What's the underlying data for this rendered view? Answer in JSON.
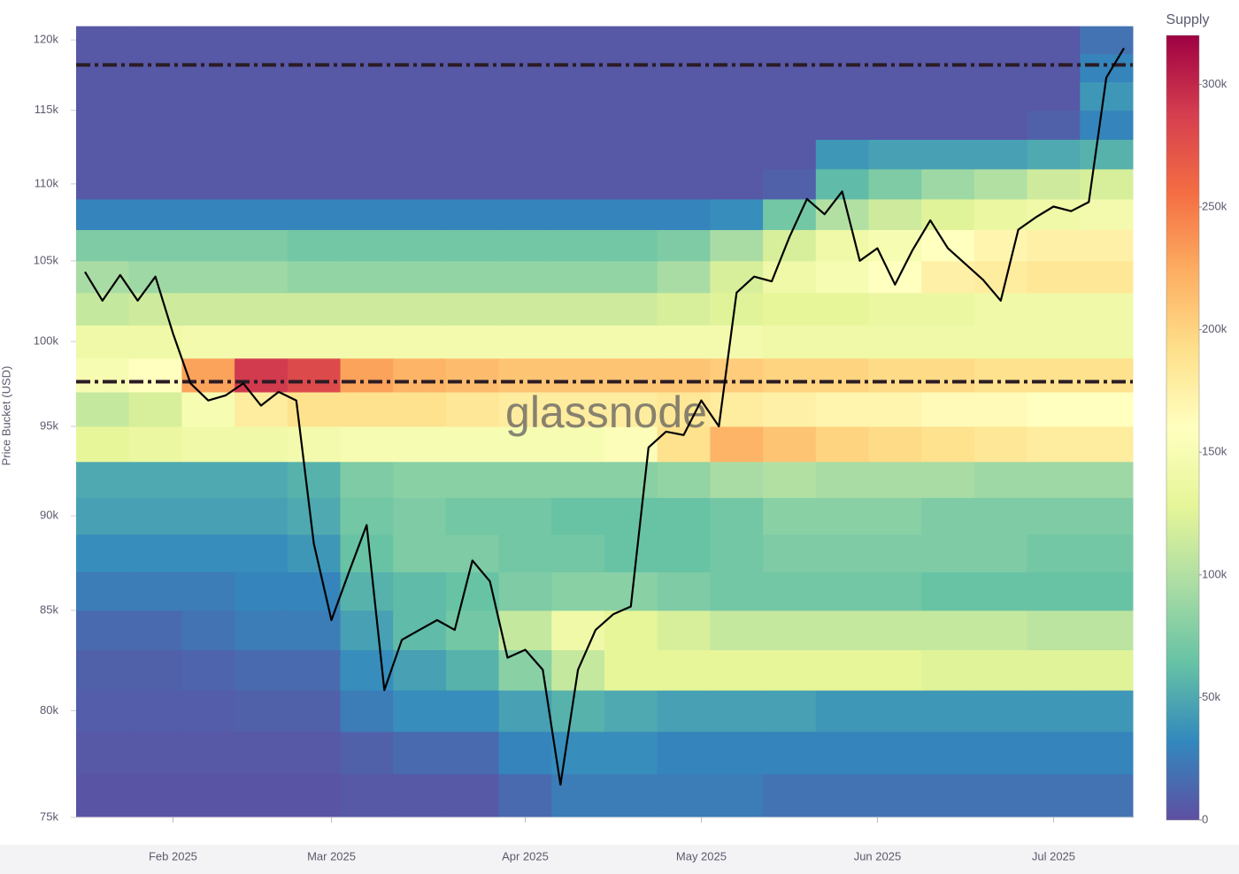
{
  "chart_data": {
    "type": "heatmap",
    "y_label": "Price Bucket (USD)",
    "colorbar_title": "Supply",
    "watermark": "glassnode",
    "x": [
      null,
      null,
      null,
      null,
      null,
      "Feb 2025",
      null,
      null,
      null,
      null,
      null,
      null,
      null,
      null,
      "Mar 2025",
      null,
      null,
      null,
      null,
      null,
      null,
      null,
      null,
      null,
      null,
      "Apr 2025",
      null,
      null,
      null,
      null,
      null,
      null,
      null,
      null,
      null,
      "May 2025",
      null,
      null,
      null,
      null,
      null,
      null,
      null,
      null,
      null,
      "Jun 2025",
      null,
      null,
      null,
      null,
      null,
      null,
      null,
      null,
      null,
      "Jul 2025",
      null,
      null,
      null,
      null
    ],
    "buckets": [
      75000,
      77000,
      79000,
      81000,
      83000,
      85000,
      87000,
      89000,
      91000,
      93000,
      95000,
      97000,
      99000,
      101000,
      103000,
      105000,
      107000,
      109000,
      111000,
      113000,
      115000,
      117000,
      119000,
      121000
    ],
    "z": [
      [
        3000,
        3000,
        3000,
        3000,
        3000,
        5000,
        5000,
        5000,
        15000,
        25000,
        25000,
        25000,
        25000,
        20000,
        20000,
        20000,
        20000,
        20000,
        20000,
        20000
      ],
      [
        5000,
        5000,
        5000,
        5000,
        5000,
        10000,
        15000,
        15000,
        30000,
        35000,
        35000,
        30000,
        30000,
        30000,
        30000,
        30000,
        30000,
        30000,
        30000,
        30000
      ],
      [
        8000,
        8000,
        8000,
        10000,
        10000,
        25000,
        35000,
        35000,
        45000,
        55000,
        50000,
        45000,
        45000,
        45000,
        40000,
        40000,
        40000,
        40000,
        40000,
        40000
      ],
      [
        10000,
        10000,
        12000,
        15000,
        15000,
        35000,
        45000,
        55000,
        80000,
        110000,
        130000,
        130000,
        130000,
        130000,
        130000,
        130000,
        125000,
        125000,
        125000,
        125000
      ],
      [
        15000,
        15000,
        20000,
        25000,
        25000,
        45000,
        60000,
        70000,
        110000,
        140000,
        130000,
        120000,
        110000,
        110000,
        110000,
        110000,
        110000,
        110000,
        105000,
        105000
      ],
      [
        25000,
        25000,
        25000,
        30000,
        30000,
        55000,
        60000,
        65000,
        75000,
        80000,
        80000,
        75000,
        70000,
        70000,
        70000,
        70000,
        65000,
        65000,
        65000,
        65000
      ],
      [
        35000,
        35000,
        35000,
        35000,
        40000,
        65000,
        75000,
        75000,
        70000,
        70000,
        65000,
        65000,
        70000,
        75000,
        75000,
        75000,
        75000,
        75000,
        70000,
        70000
      ],
      [
        45000,
        45000,
        45000,
        45000,
        50000,
        70000,
        75000,
        70000,
        70000,
        65000,
        65000,
        65000,
        70000,
        80000,
        80000,
        80000,
        75000,
        75000,
        75000,
        75000
      ],
      [
        50000,
        50000,
        50000,
        50000,
        55000,
        75000,
        80000,
        80000,
        80000,
        80000,
        80000,
        85000,
        95000,
        100000,
        95000,
        95000,
        95000,
        90000,
        90000,
        90000
      ],
      [
        130000,
        135000,
        140000,
        140000,
        145000,
        150000,
        150000,
        150000,
        150000,
        150000,
        155000,
        190000,
        220000,
        210000,
        200000,
        195000,
        190000,
        185000,
        180000,
        180000
      ],
      [
        110000,
        120000,
        150000,
        180000,
        190000,
        190000,
        190000,
        185000,
        180000,
        180000,
        180000,
        185000,
        180000,
        175000,
        170000,
        170000,
        165000,
        165000,
        160000,
        160000
      ],
      [
        150000,
        160000,
        230000,
        290000,
        280000,
        230000,
        220000,
        215000,
        210000,
        210000,
        210000,
        210000,
        205000,
        200000,
        200000,
        195000,
        195000,
        190000,
        190000,
        190000
      ],
      [
        140000,
        140000,
        145000,
        145000,
        145000,
        145000,
        145000,
        145000,
        145000,
        145000,
        145000,
        145000,
        145000,
        140000,
        140000,
        140000,
        140000,
        140000,
        140000,
        140000
      ],
      [
        110000,
        115000,
        115000,
        115000,
        115000,
        115000,
        115000,
        115000,
        115000,
        115000,
        115000,
        120000,
        125000,
        130000,
        130000,
        135000,
        135000,
        140000,
        140000,
        140000
      ],
      [
        95000,
        90000,
        90000,
        90000,
        85000,
        85000,
        85000,
        85000,
        85000,
        85000,
        85000,
        95000,
        120000,
        140000,
        150000,
        160000,
        175000,
        180000,
        185000,
        185000
      ],
      [
        75000,
        75000,
        75000,
        75000,
        70000,
        70000,
        70000,
        70000,
        70000,
        70000,
        70000,
        75000,
        95000,
        120000,
        140000,
        150000,
        160000,
        170000,
        175000,
        175000
      ],
      [
        30000,
        30000,
        30000,
        30000,
        30000,
        30000,
        30000,
        30000,
        30000,
        30000,
        30000,
        30000,
        35000,
        70000,
        100000,
        115000,
        125000,
        135000,
        140000,
        145000
      ],
      [
        5000,
        5000,
        5000,
        5000,
        5000,
        5000,
        5000,
        5000,
        5000,
        5000,
        5000,
        5000,
        5000,
        10000,
        60000,
        75000,
        90000,
        100000,
        115000,
        120000
      ],
      [
        5000,
        5000,
        5000,
        5000,
        5000,
        5000,
        5000,
        5000,
        5000,
        5000,
        5000,
        5000,
        5000,
        5000,
        40000,
        45000,
        45000,
        45000,
        50000,
        55000
      ],
      [
        5000,
        5000,
        5000,
        5000,
        5000,
        5000,
        5000,
        5000,
        5000,
        5000,
        5000,
        5000,
        5000,
        5000,
        5000,
        5000,
        5000,
        5000,
        10000,
        30000
      ],
      [
        5000,
        5000,
        5000,
        5000,
        5000,
        5000,
        5000,
        5000,
        5000,
        5000,
        5000,
        5000,
        5000,
        5000,
        5000,
        5000,
        5000,
        5000,
        5000,
        40000
      ],
      [
        5000,
        5000,
        5000,
        5000,
        5000,
        5000,
        5000,
        5000,
        5000,
        5000,
        5000,
        5000,
        5000,
        5000,
        5000,
        5000,
        5000,
        5000,
        5000,
        30000
      ],
      [
        5000,
        5000,
        5000,
        5000,
        5000,
        5000,
        5000,
        5000,
        5000,
        5000,
        5000,
        5000,
        5000,
        5000,
        5000,
        5000,
        5000,
        5000,
        5000,
        20000
      ]
    ],
    "price": [
      104300,
      102500,
      104100,
      102500,
      104000,
      100500,
      97500,
      96500,
      96800,
      97500,
      96200,
      97000,
      96500,
      88500,
      84500,
      87000,
      89500,
      81000,
      83500,
      84000,
      84500,
      84000,
      87600,
      86500,
      82600,
      83000,
      82000,
      76500,
      82000,
      84000,
      84800,
      85200,
      93800,
      94700,
      94500,
      96500,
      95000,
      103000,
      104000,
      103700,
      106500,
      109000,
      108000,
      109500,
      105000,
      105800,
      103500,
      105700,
      107600,
      105800,
      104800,
      103800,
      102500,
      107000,
      107800,
      108500,
      108200,
      108800,
      117300,
      119400
    ],
    "price_color": "#000000",
    "hlines": [
      118200,
      97600
    ],
    "hline_color": "#2b1b24",
    "log_y": true,
    "ylim": [
      75000,
      121300
    ],
    "yticks": [
      {
        "value": 75000,
        "label": "75k"
      },
      {
        "value": 80000,
        "label": "80k"
      },
      {
        "value": 85000,
        "label": "85k"
      },
      {
        "value": 90000,
        "label": "90k"
      },
      {
        "value": 95000,
        "label": "95k"
      },
      {
        "value": 100000,
        "label": "100k"
      },
      {
        "value": 105000,
        "label": "105k"
      },
      {
        "value": 110000,
        "label": "110k"
      },
      {
        "value": 115000,
        "label": "115k"
      },
      {
        "value": 120000,
        "label": "120k"
      }
    ],
    "zlim": [
      0,
      320000
    ],
    "zticks": [
      0,
      {
        "value": 50000,
        "label": "50k"
      },
      {
        "value": 100000,
        "label": "100k"
      },
      {
        "value": 150000,
        "label": "150k"
      },
      {
        "value": 200000,
        "label": "200k"
      },
      {
        "value": 250000,
        "label": "250k"
      },
      {
        "value": 300000,
        "label": "300k"
      }
    ],
    "colorscale": [
      "#5e4fa2",
      "#3288bd",
      "#66c2a5",
      "#abdda4",
      "#e6f598",
      "#ffffbf",
      "#fee08b",
      "#fdae61",
      "#f46d43",
      "#d53e4f",
      "#9e0142"
    ]
  }
}
